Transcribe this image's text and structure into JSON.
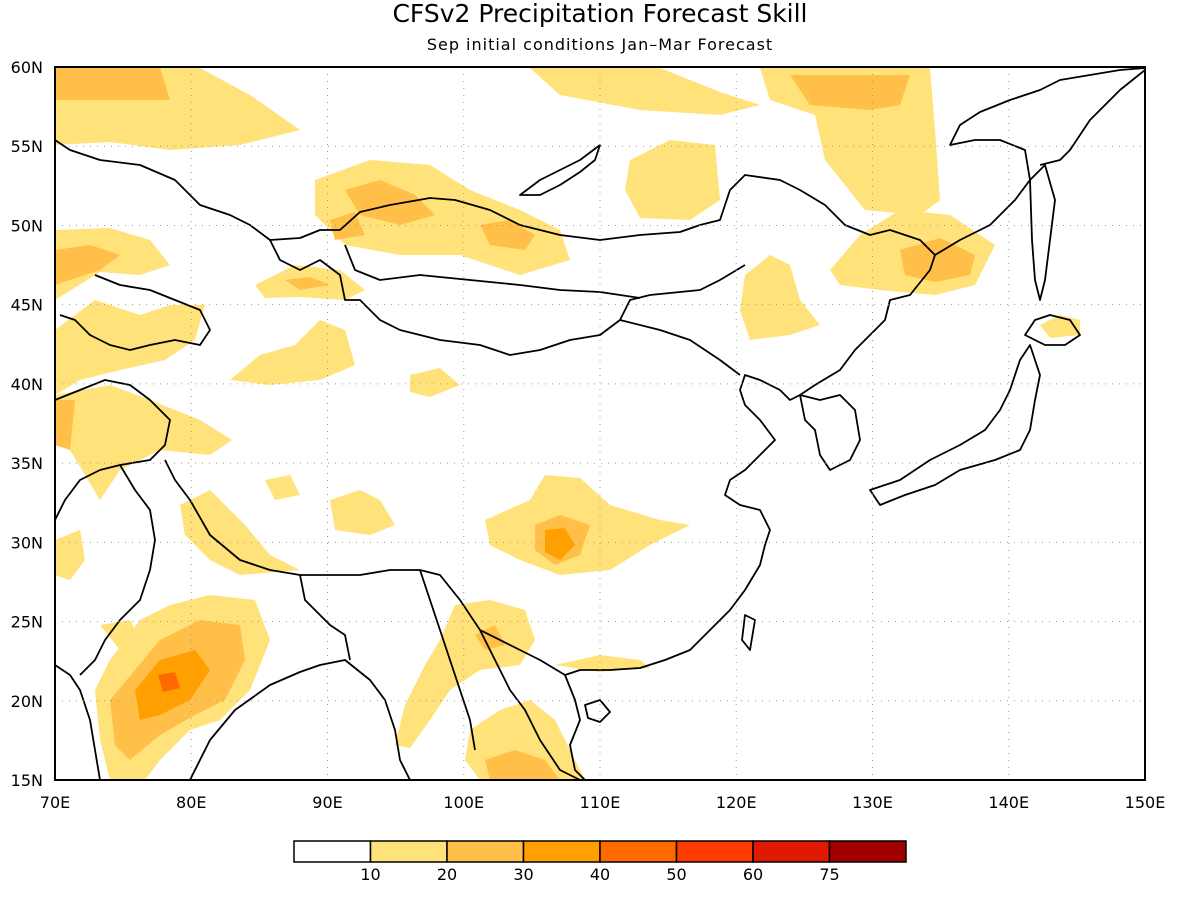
{
  "title": "CFSv2 Precipitation Forecast Skill",
  "subtitle": "Sep initial conditions  Jan–Mar Forecast",
  "lat_labels": [
    "60N",
    "55N",
    "50N",
    "45N",
    "40N",
    "35N",
    "30N",
    "25N",
    "20N",
    "15N"
  ],
  "lon_labels": [
    "70E",
    "80E",
    "90E",
    "100E",
    "110E",
    "120E",
    "130E",
    "140E",
    "150E"
  ],
  "colorbar": {
    "labels": [
      "10",
      "20",
      "30",
      "40",
      "50",
      "60",
      "75"
    ],
    "colors": [
      "#ffffff",
      "#ffe27a",
      "#ffbf48",
      "#ffa000",
      "#ff6a00",
      "#ff3c00",
      "#e01a00",
      "#a00000"
    ]
  },
  "colors": {
    "frame": "#000000",
    "coast": "#000000",
    "grid": "#9a9a9a"
  }
}
